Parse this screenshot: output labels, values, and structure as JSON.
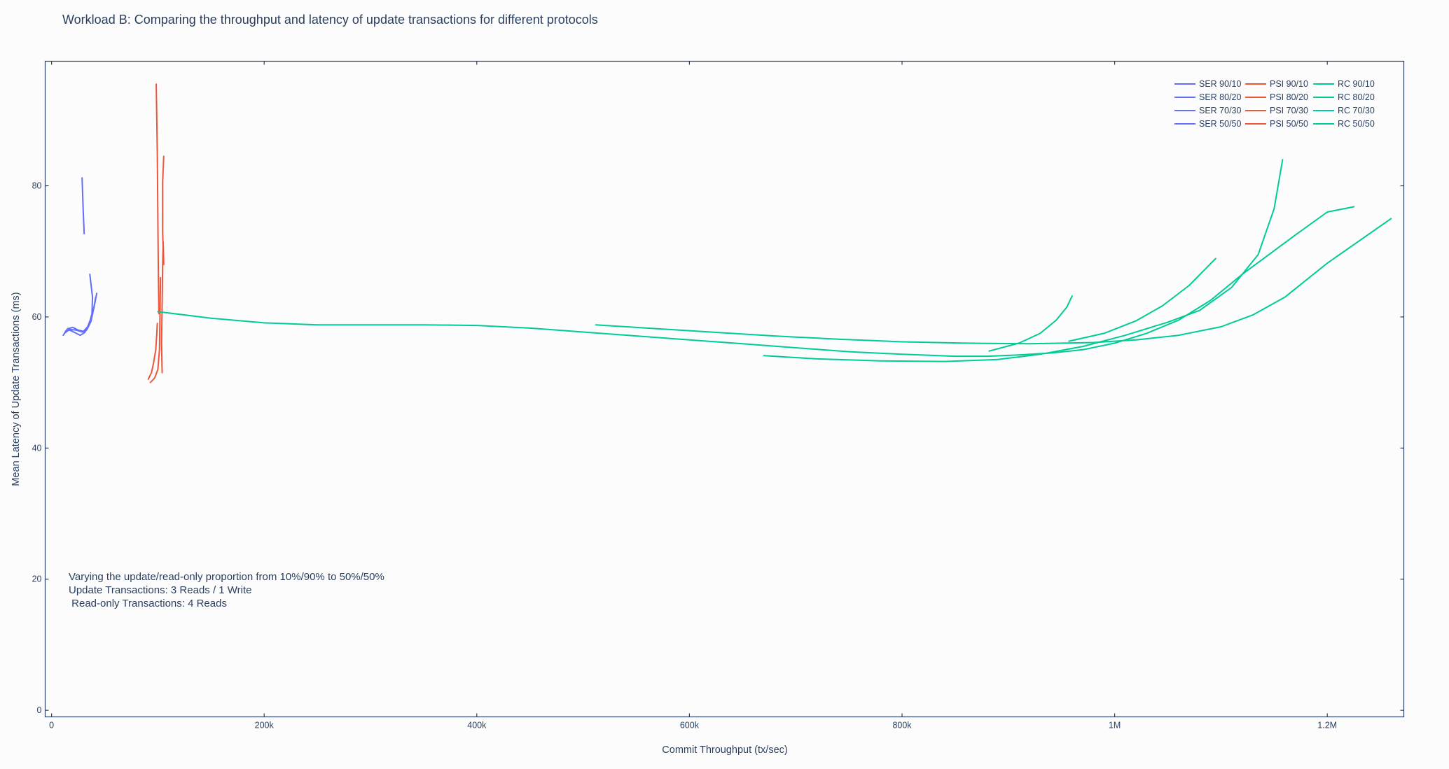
{
  "chart_data": {
    "type": "line",
    "title": "Workload B: Comparing the throughput and latency of update transactions for different protocols",
    "xlabel": "Commit Throughput (tx/sec)",
    "ylabel": "Mean Latency of Update Transactions (ms)",
    "xlim": [
      -6000,
      1272000
    ],
    "ylim": [
      -1,
      99
    ],
    "x_ticks": [
      {
        "v": 0,
        "label": "0"
      },
      {
        "v": 200000,
        "label": "200k"
      },
      {
        "v": 400000,
        "label": "400k"
      },
      {
        "v": 600000,
        "label": "600k"
      },
      {
        "v": 800000,
        "label": "800k"
      },
      {
        "v": 1000000,
        "label": "1M"
      },
      {
        "v": 1200000,
        "label": "1.2M"
      }
    ],
    "y_ticks": [
      {
        "v": 0,
        "label": "0"
      },
      {
        "v": 20,
        "label": "20"
      },
      {
        "v": 40,
        "label": "40"
      },
      {
        "v": 60,
        "label": "60"
      },
      {
        "v": 80,
        "label": "80"
      }
    ],
    "grid": false,
    "legend_position": "top-right",
    "annotation": [
      "Varying the update/read-only proportion from 10%/90% to 50%/50%",
      "Update Transactions: 3 Reads / 1 Write",
      " Read-only Transactions: 4 Reads"
    ],
    "series": [
      {
        "name": "SER 90/10",
        "color": "#636efa",
        "points": [
          [
            28700,
            81.2
          ],
          [
            29700,
            76.5
          ],
          [
            30700,
            72.7
          ]
        ]
      },
      {
        "name": "SER 80/20",
        "color": "#636efa",
        "points": [
          [
            11000,
            57.2
          ],
          [
            15000,
            58.2
          ],
          [
            20000,
            58.4
          ],
          [
            25000,
            58.0
          ],
          [
            30000,
            57.8
          ],
          [
            34000,
            58.5
          ],
          [
            38000,
            60.2
          ],
          [
            41000,
            62.3
          ],
          [
            42500,
            63.6
          ]
        ]
      },
      {
        "name": "SER 70/30",
        "color": "#636efa",
        "points": [
          [
            12000,
            57.5
          ],
          [
            17000,
            58.1
          ],
          [
            23000,
            58.0
          ],
          [
            29000,
            57.7
          ],
          [
            33000,
            58.0
          ],
          [
            37000,
            59.3
          ],
          [
            40000,
            61.5
          ],
          [
            41500,
            63.0
          ]
        ]
      },
      {
        "name": "SER 50/50",
        "color": "#636efa",
        "points": [
          [
            36000,
            66.5
          ],
          [
            38500,
            63.0
          ],
          [
            38000,
            60.5
          ],
          [
            35000,
            58.6
          ],
          [
            31000,
            57.6
          ],
          [
            27000,
            57.2
          ],
          [
            22000,
            57.6
          ],
          [
            17000,
            58.0
          ],
          [
            13000,
            57.8
          ]
        ]
      },
      {
        "name": "PSI 90/10",
        "color": "#ef553b",
        "points": [
          [
            98500,
            95.5
          ],
          [
            99500,
            85.0
          ],
          [
            100000,
            75.0
          ],
          [
            100500,
            66.0
          ],
          [
            101000,
            60.5
          ]
        ]
      },
      {
        "name": "PSI 80/20",
        "color": "#ef553b",
        "points": [
          [
            91000,
            50.5
          ],
          [
            94000,
            51.5
          ],
          [
            96000,
            53.0
          ],
          [
            98000,
            55.0
          ],
          [
            99000,
            57.5
          ],
          [
            99500,
            59.0
          ]
        ]
      },
      {
        "name": "PSI 70/30",
        "color": "#ef553b",
        "points": [
          [
            93000,
            50.0
          ],
          [
            97000,
            50.7
          ],
          [
            100000,
            52.0
          ],
          [
            101500,
            55.0
          ],
          [
            102000,
            60.0
          ],
          [
            102500,
            66.0
          ]
        ]
      },
      {
        "name": "PSI 50/50",
        "color": "#ef553b",
        "points": [
          [
            104000,
            51.5
          ],
          [
            103500,
            56.0
          ],
          [
            104000,
            62.0
          ],
          [
            104500,
            67.5
          ],
          [
            105000,
            71.5
          ],
          [
            105500,
            68.0
          ],
          [
            104500,
            73.0
          ],
          [
            104500,
            80.5
          ],
          [
            105500,
            84.5
          ]
        ]
      },
      {
        "name": "RC 90/10",
        "color": "#00cc96",
        "points": [
          [
            100000,
            60.8
          ],
          [
            150000,
            59.8
          ],
          [
            200000,
            59.1
          ],
          [
            250000,
            58.8
          ],
          [
            300000,
            58.8
          ],
          [
            350000,
            58.8
          ],
          [
            400000,
            58.7
          ],
          [
            450000,
            58.3
          ],
          [
            500000,
            57.7
          ],
          [
            550000,
            57.1
          ],
          [
            600000,
            56.5
          ],
          [
            650000,
            55.9
          ],
          [
            700000,
            55.3
          ],
          [
            750000,
            54.7
          ],
          [
            800000,
            54.3
          ],
          [
            850000,
            54.0
          ],
          [
            880000,
            54.0
          ],
          [
            910000,
            54.2
          ],
          [
            940000,
            54.5
          ],
          [
            970000,
            55.0
          ],
          [
            1000000,
            56.0
          ],
          [
            1030000,
            57.5
          ],
          [
            1060000,
            59.5
          ],
          [
            1090000,
            62.5
          ],
          [
            1120000,
            66.5
          ],
          [
            1145000,
            69.5
          ],
          [
            1170000,
            72.5
          ],
          [
            1200000,
            76.0
          ],
          [
            1225000,
            76.8
          ]
        ]
      },
      {
        "name": "RC 80/20",
        "color": "#00cc96",
        "points": [
          [
            512000,
            58.8
          ],
          [
            560000,
            58.3
          ],
          [
            620000,
            57.7
          ],
          [
            680000,
            57.1
          ],
          [
            740000,
            56.6
          ],
          [
            800000,
            56.2
          ],
          [
            860000,
            56.0
          ],
          [
            920000,
            55.9
          ],
          [
            980000,
            56.1
          ],
          [
            1020000,
            56.5
          ],
          [
            1060000,
            57.2
          ],
          [
            1100000,
            58.5
          ],
          [
            1130000,
            60.3
          ],
          [
            1160000,
            63.0
          ],
          [
            1200000,
            68.2
          ],
          [
            1260000,
            75.0
          ]
        ]
      },
      {
        "name": "RC 70/30",
        "color": "#00cc96",
        "points": [
          [
            670000,
            54.1
          ],
          [
            720000,
            53.6
          ],
          [
            780000,
            53.3
          ],
          [
            840000,
            53.2
          ],
          [
            890000,
            53.5
          ],
          [
            930000,
            54.3
          ],
          [
            970000,
            55.5
          ],
          [
            1010000,
            57.2
          ],
          [
            1050000,
            59.2
          ],
          [
            1080000,
            61.0
          ],
          [
            1110000,
            64.5
          ],
          [
            1135000,
            69.5
          ],
          [
            1150000,
            76.5
          ],
          [
            1158000,
            84.0
          ]
        ]
      },
      {
        "name": "RC 50/50",
        "color": "#00cc96",
        "points": [
          [
            882000,
            54.8
          ],
          [
            910000,
            56.0
          ],
          [
            930000,
            57.5
          ],
          [
            945000,
            59.5
          ],
          [
            955000,
            61.5
          ],
          [
            960000,
            63.2
          ]
        ]
      },
      {
        "name": "",
        "color": "#00cc96",
        "points": [
          [
            957000,
            56.3
          ],
          [
            990000,
            57.5
          ],
          [
            1020000,
            59.4
          ],
          [
            1045000,
            61.7
          ],
          [
            1070000,
            64.8
          ],
          [
            1095000,
            68.9
          ]
        ]
      }
    ]
  }
}
